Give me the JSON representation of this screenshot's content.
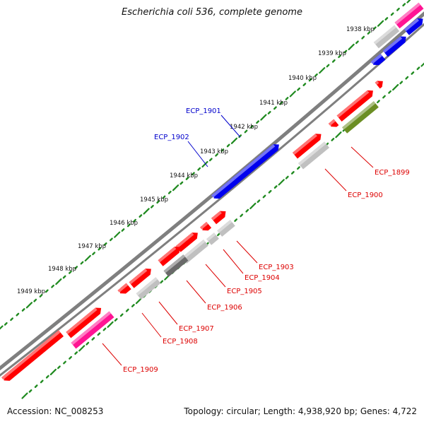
{
  "title": "Escherichia coli 536, complete genome",
  "footer": {
    "accession": "Accession: NC_008253",
    "summary": "Topology: circular; Length: 4,938,920 bp; Genes: 4,722"
  },
  "colors": {
    "backbone": "#7f7f7f",
    "tick": "#1f8a1f",
    "red": "#ff0000",
    "blue": "#0000ee",
    "lightgray": "#c0c0c0",
    "darkgray": "#6a6a6a",
    "pink": "#ff1493",
    "olive": "#6b8e23"
  },
  "ticks": [
    "1938 kbp",
    "1939 kbp",
    "1940 kbp",
    "1941 kbp",
    "1942 kbp",
    "1943 kbp",
    "1944 kbp",
    "1945 kbp",
    "1946 kbp",
    "1947 kbp",
    "1948 kbp",
    "1949 kbp"
  ],
  "genes": [
    "ECP_1899",
    "ECP_1900",
    "ECP_1901",
    "ECP_1902",
    "ECP_1903",
    "ECP_1904",
    "ECP_1905",
    "ECP_1906",
    "ECP_1907",
    "ECP_1908",
    "ECP_1909"
  ]
}
